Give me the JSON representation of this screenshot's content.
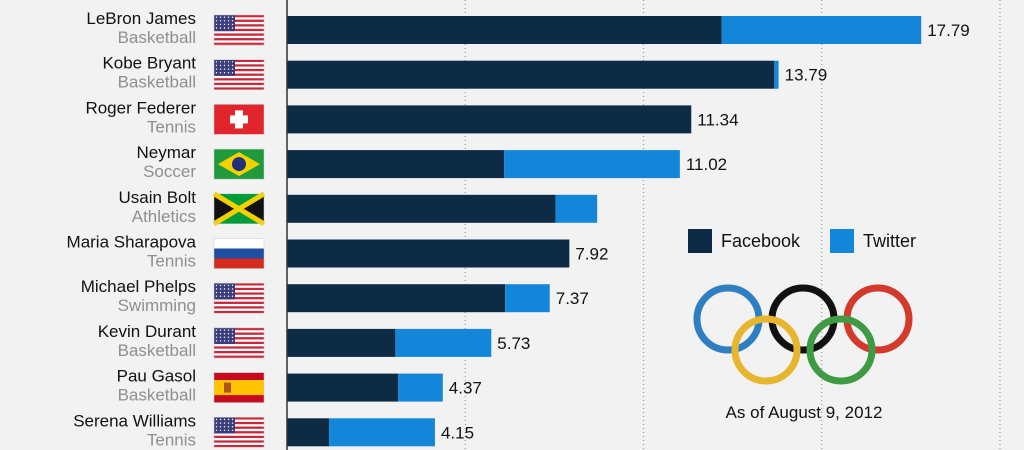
{
  "chart_data": {
    "type": "bar",
    "orientation": "horizontal",
    "stacked": true,
    "categories": [
      "LeBron James",
      "Kobe Bryant",
      "Roger Federer",
      "Neymar",
      "Usain Bolt",
      "Maria Sharapova",
      "Michael Phelps",
      "Kevin Durant",
      "Pau Gasol",
      "Serena Williams"
    ],
    "sports": [
      "Basketball",
      "Basketball",
      "Tennis",
      "Soccer",
      "Athletics",
      "Tennis",
      "Swimming",
      "Basketball",
      "Basketball",
      "Tennis"
    ],
    "flags": [
      "usa",
      "usa",
      "switzerland",
      "brazil",
      "jamaica",
      "russia",
      "usa",
      "usa",
      "spain",
      "usa"
    ],
    "series": [
      {
        "name": "Facebook",
        "color": "#0d2b45",
        "values": [
          12.19,
          13.67,
          11.34,
          6.09,
          7.53,
          7.92,
          6.12,
          3.04,
          3.12,
          1.18
        ]
      },
      {
        "name": "Twitter",
        "color": "#1386d9",
        "values": [
          5.6,
          0.12,
          0,
          4.93,
          1.17,
          0,
          1.25,
          2.69,
          1.25,
          2.97
        ]
      }
    ],
    "totals_shown": [
      "17.79",
      "13.79",
      "11.34",
      "11.02",
      "",
      "7.92",
      "7.37",
      "5.73",
      "4.37",
      "4.15"
    ],
    "xlim": [
      0,
      20
    ],
    "grid": true,
    "legend": "right",
    "annotation": "As of August 9, 2012"
  }
}
